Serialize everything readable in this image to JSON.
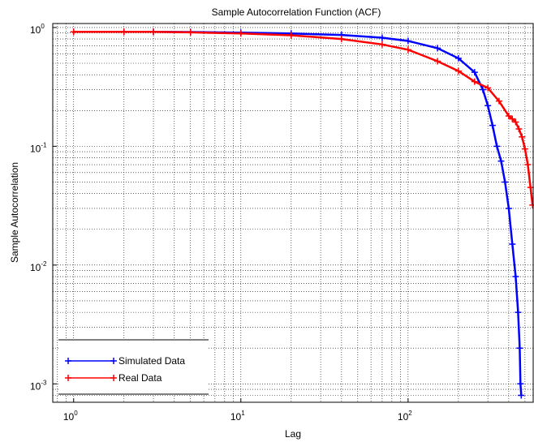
{
  "chart_data": {
    "type": "scatter",
    "title": "Sample Autocorrelation Function (ACF)",
    "xlabel": "Lag",
    "ylabel": "Sample Autocorrelation",
    "xscale": "log",
    "yscale": "log",
    "xlim": [
      0.75,
      560
    ],
    "ylim": [
      0.0007,
      1.08
    ],
    "grid": true,
    "x_ticks": [
      {
        "base": "10",
        "exp": "0",
        "value": 1
      },
      {
        "base": "10",
        "exp": "1",
        "value": 10
      },
      {
        "base": "10",
        "exp": "2",
        "value": 100
      }
    ],
    "y_ticks": [
      {
        "base": "10",
        "exp": "0",
        "value": 1
      },
      {
        "base": "10",
        "exp": "-1",
        "value": 0.1
      },
      {
        "base": "10",
        "exp": "-2",
        "value": 0.01
      },
      {
        "base": "10",
        "exp": "-3",
        "value": 0.001
      }
    ],
    "legend": {
      "position": "bottom-left"
    },
    "series": [
      {
        "name": "Simulated Data",
        "color": "#0000ff",
        "marker": "+",
        "points": [
          [
            1,
            0.92
          ],
          [
            2,
            0.92
          ],
          [
            3,
            0.92
          ],
          [
            5,
            0.915
          ],
          [
            10,
            0.905
          ],
          [
            20,
            0.89
          ],
          [
            40,
            0.865
          ],
          [
            70,
            0.82
          ],
          [
            100,
            0.77
          ],
          [
            150,
            0.67
          ],
          [
            200,
            0.55
          ],
          [
            250,
            0.42
          ],
          [
            280,
            0.3
          ],
          [
            300,
            0.22
          ],
          [
            320,
            0.15
          ],
          [
            340,
            0.1
          ],
          [
            360,
            0.075
          ],
          [
            380,
            0.05
          ],
          [
            400,
            0.03
          ],
          [
            420,
            0.015
          ],
          [
            440,
            0.008
          ],
          [
            455,
            0.004
          ],
          [
            465,
            0.002
          ],
          [
            470,
            0.001
          ],
          [
            475,
            0.0008
          ]
        ]
      },
      {
        "name": "Real Data",
        "color": "#ff0000",
        "marker": "+",
        "points": [
          [
            1,
            0.92
          ],
          [
            2,
            0.92
          ],
          [
            3,
            0.92
          ],
          [
            5,
            0.91
          ],
          [
            10,
            0.89
          ],
          [
            20,
            0.86
          ],
          [
            40,
            0.8
          ],
          [
            70,
            0.72
          ],
          [
            100,
            0.65
          ],
          [
            150,
            0.52
          ],
          [
            200,
            0.43
          ],
          [
            250,
            0.35
          ],
          [
            300,
            0.31
          ],
          [
            350,
            0.24
          ],
          [
            400,
            0.18
          ],
          [
            420,
            0.17
          ],
          [
            440,
            0.16
          ],
          [
            460,
            0.14
          ],
          [
            480,
            0.12
          ],
          [
            500,
            0.095
          ],
          [
            520,
            0.07
          ],
          [
            540,
            0.045
          ],
          [
            555,
            0.032
          ]
        ]
      }
    ]
  }
}
